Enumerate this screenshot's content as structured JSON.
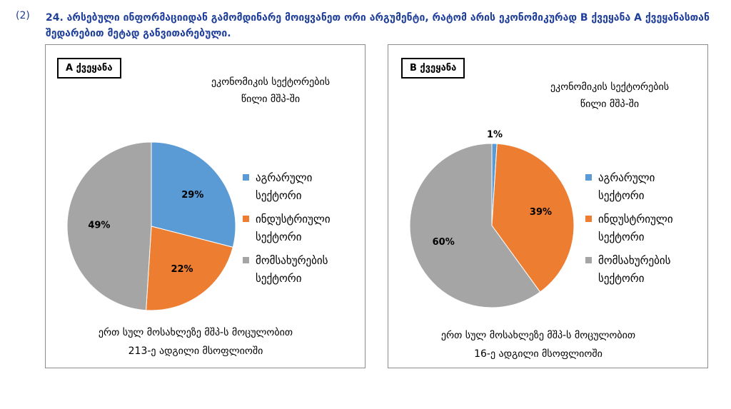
{
  "question": {
    "number": "(2)",
    "line1": "24. არსებული ინფორმაციიდან გამომდინარე მოიყვანეთ ორი არგუმენტი, რატომ არის ეკონომიკურად B ქვეყანა  A ქვეყანასთან",
    "line2": "შედარებით მეტად განვითარებული."
  },
  "colors": {
    "agrarian": "#5b9bd5",
    "industrial": "#ed7d31",
    "services": "#a5a5a5"
  },
  "chart_data": [
    {
      "type": "pie",
      "country": "A ქვეყანა",
      "title_line1": "ეკონომიკის სექტორების",
      "title_line2": "წილი მშპ-ში",
      "labels": [
        "აგრარული სექტორი",
        "ინდუსტრიული სექტორი",
        "მომსახურების სექტორი"
      ],
      "values": [
        29,
        22,
        49
      ],
      "data_labels": [
        "29%",
        "22%",
        "49%"
      ],
      "legend": [
        {
          "line1": "აგრარული",
          "line2": "სექტორი"
        },
        {
          "line1": "ინდუსტრიული",
          "line2": "სექტორი"
        },
        {
          "line1": "მომსახურების",
          "line2": "სექტორი"
        }
      ],
      "legend_position": "right",
      "footnote_line1": "ერთ სულ მოსახლეზე  მშპ-ს  მოცულობით",
      "footnote_line2": "213-ე ადგილი მსოფლიოში"
    },
    {
      "type": "pie",
      "country": "B ქვეყანა",
      "title_line1": "ეკონომიკის სექტორების",
      "title_line2": "წილი მშპ-ში",
      "labels": [
        "აგრარული სექტორი",
        "ინდუსტრიული სექტორი",
        "მომსახურების სექტორი"
      ],
      "values": [
        1,
        39,
        60
      ],
      "data_labels": [
        "1%",
        "39%",
        "60%"
      ],
      "legend": [
        {
          "line1": "აგრარული",
          "line2": "სექტორი"
        },
        {
          "line1": "ინდუსტრიული",
          "line2": "სექტორი"
        },
        {
          "line1": "მომსახურების",
          "line2": "სექტორი"
        }
      ],
      "legend_position": "right",
      "footnote_line1": "ერთ სულ მოსახლეზე  მშპ-ს მოცულობით",
      "footnote_line2": "16-ე ადგილი მსოფლიოში"
    }
  ]
}
